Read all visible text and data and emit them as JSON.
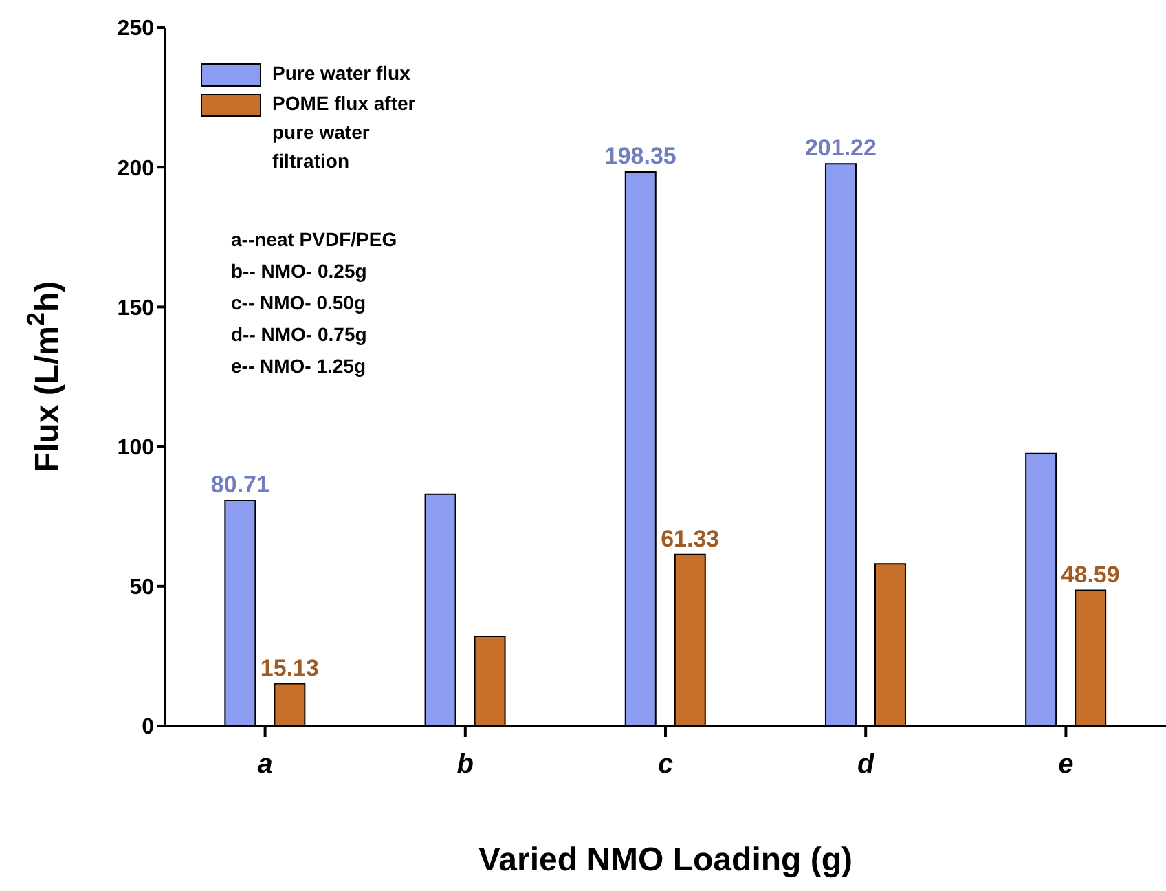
{
  "chart_data": {
    "type": "bar",
    "xlabel": "Varied NMO Loading (g)",
    "ylabel": "Flux (L/m$^{2}$h)",
    "categories": [
      "a",
      "b",
      "c",
      "d",
      "e"
    ],
    "series": [
      {
        "name": "Pure water flux",
        "color": "#8c9cf0",
        "values": [
          80.71,
          83,
          198.35,
          201.22,
          97.5
        ],
        "value_labels": [
          "80.71",
          null,
          "198.35",
          "201.22",
          null
        ]
      },
      {
        "name": "POME flux after pure water filtration",
        "color": "#c8702a",
        "values": [
          15.13,
          32,
          61.33,
          58,
          48.59
        ],
        "value_labels": [
          "15.13",
          null,
          "61.33",
          null,
          "48.59"
        ]
      }
    ],
    "ylim": [
      0,
      250
    ],
    "yticks": [
      0,
      50,
      100,
      150,
      200,
      250
    ],
    "legend": "top left",
    "annotations": [
      "a--neat PVDF/PEG",
      "b-- NMO- 0.25g",
      "c-- NMO- 0.50g",
      "d-- NMO- 0.75g",
      "e-- NMO- 1.25g"
    ]
  }
}
